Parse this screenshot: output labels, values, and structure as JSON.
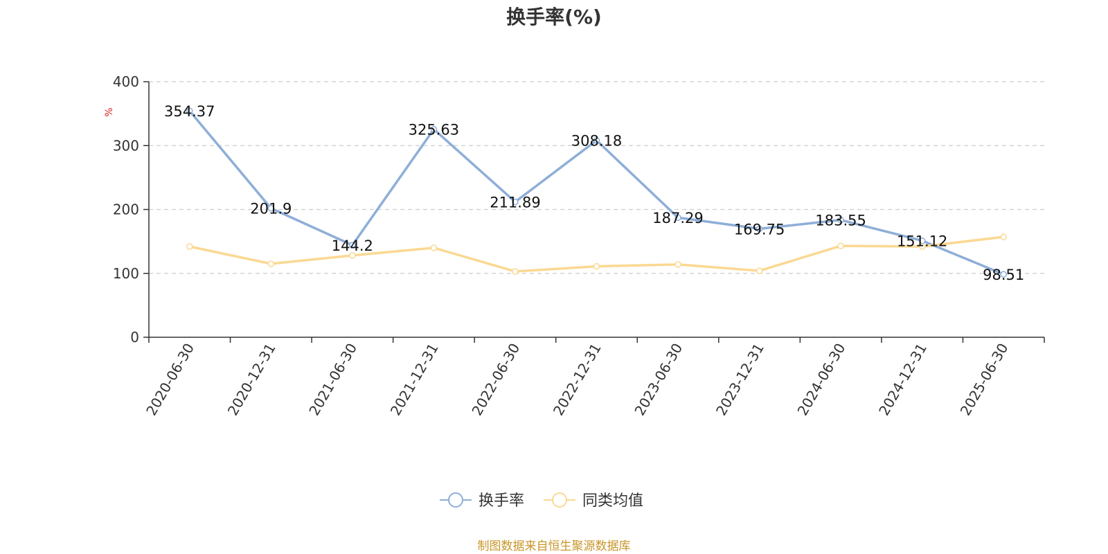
{
  "chart_data": {
    "type": "line",
    "title": "换手率(%)",
    "ylabel": "%",
    "ylim": [
      0,
      400
    ],
    "yticks": [
      0,
      100,
      200,
      300,
      400
    ],
    "grid": true,
    "legend_position": "bottom",
    "categories": [
      "2020-06-30",
      "2020-12-31",
      "2021-06-30",
      "2021-12-31",
      "2022-06-30",
      "2022-12-31",
      "2023-06-30",
      "2023-12-31",
      "2024-06-30",
      "2024-12-31",
      "2025-06-30"
    ],
    "series": [
      {
        "name": "换手率",
        "color": "#8eaed8",
        "values": [
          354.37,
          201.9,
          144.2,
          325.63,
          211.89,
          308.18,
          187.29,
          169.75,
          183.55,
          151.12,
          98.51
        ],
        "labels": [
          "354.37",
          "201.9",
          "144.2",
          "325.63",
          "211.89",
          "308.18",
          "187.29",
          "169.75",
          "183.55",
          "151.12",
          "98.51"
        ]
      },
      {
        "name": "同类均值",
        "color": "#fbd892",
        "values": [
          142,
          115,
          128,
          140,
          103,
          111,
          114,
          104,
          143,
          142,
          157
        ]
      }
    ],
    "source": "制图数据来自恒生聚源数据库"
  }
}
